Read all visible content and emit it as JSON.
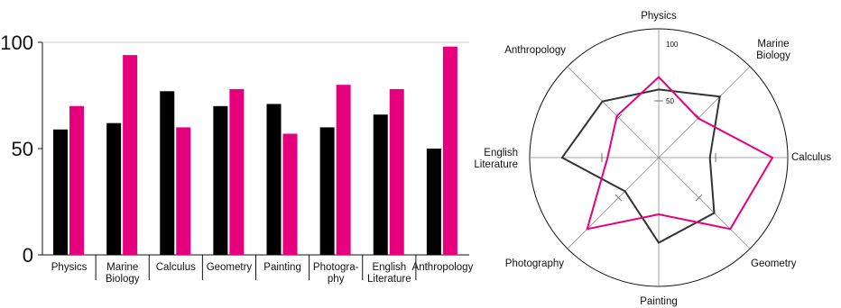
{
  "chart_data": [
    {
      "type": "bar",
      "categories": [
        [
          "Physics"
        ],
        [
          "Marine",
          "Biology"
        ],
        [
          "Calculus"
        ],
        [
          "Geometry"
        ],
        [
          "Painting"
        ],
        [
          "Photogra-",
          "phy"
        ],
        [
          "English",
          "Literature"
        ],
        [
          "Anthropology"
        ]
      ],
      "series": [
        {
          "color": "#000000",
          "values": [
            59,
            62,
            77,
            70,
            71,
            60,
            66,
            50
          ]
        },
        {
          "color": "#e6007e",
          "values": [
            70,
            94,
            60,
            78,
            57,
            80,
            78,
            98
          ]
        }
      ],
      "ylim": [
        0,
        100
      ],
      "yticks": [
        "0",
        "50",
        "100"
      ],
      "grid": false,
      "legend": "none"
    },
    {
      "type": "radar",
      "axes": [
        [
          "Physics"
        ],
        [
          "Marine",
          "Biology"
        ],
        [
          "Calculus"
        ],
        [
          "Geometry"
        ],
        [
          "Painting"
        ],
        [
          "Photography"
        ],
        [
          "English",
          "Literature"
        ],
        [
          "Anthropology"
        ]
      ],
      "series": [
        {
          "color": "#333333",
          "values": [
            60,
            76,
            45,
            69,
            75,
            42,
            85,
            70
          ]
        },
        {
          "color": "#e6007e",
          "values": [
            71,
            49,
            100,
            89,
            50,
            89,
            45,
            52
          ]
        }
      ],
      "rlim": [
        0,
        100
      ],
      "rticks": [
        "50",
        "100"
      ],
      "legend": "none"
    }
  ]
}
